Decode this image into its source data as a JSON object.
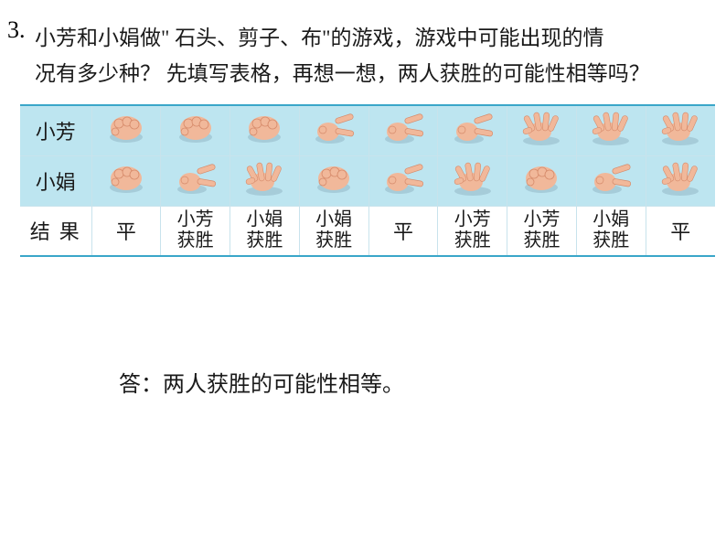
{
  "question": {
    "number": "3.",
    "line1": "小芳和小娟做\" 石头、剪子、布\"的游戏，游戏中可能出现的情",
    "line2": "况有多少种？ 先填写表格，再想一想，两人获胜的可能性相等吗？"
  },
  "table": {
    "headers": {
      "r1": "小芳",
      "r2": "小娟",
      "r3": "结果"
    },
    "hands": {
      "fang": [
        "rock",
        "rock",
        "rock",
        "scissors",
        "scissors",
        "scissors",
        "paper",
        "paper",
        "paper"
      ],
      "juan": [
        "rock",
        "scissors",
        "paper",
        "rock",
        "scissors",
        "paper",
        "rock",
        "scissors",
        "paper"
      ]
    },
    "results": [
      "平",
      "小芳\n获胜",
      "小娟\n获胜",
      "小娟\n获胜",
      "平",
      "小芳\n获胜",
      "小芳\n获胜",
      "小娟\n获胜",
      "平"
    ],
    "hand_colors": {
      "skin": "#f1b89a",
      "skin_dark": "#d68a6a",
      "shadow": "#7a9db0"
    }
  },
  "answer": "答：两人获胜的可能性相等。",
  "colors": {
    "cell_bg": "#bde5f0",
    "border": "#c8e3ec",
    "strong_border": "#3aa6c9",
    "text": "#1a1a1a",
    "bg": "#ffffff"
  }
}
